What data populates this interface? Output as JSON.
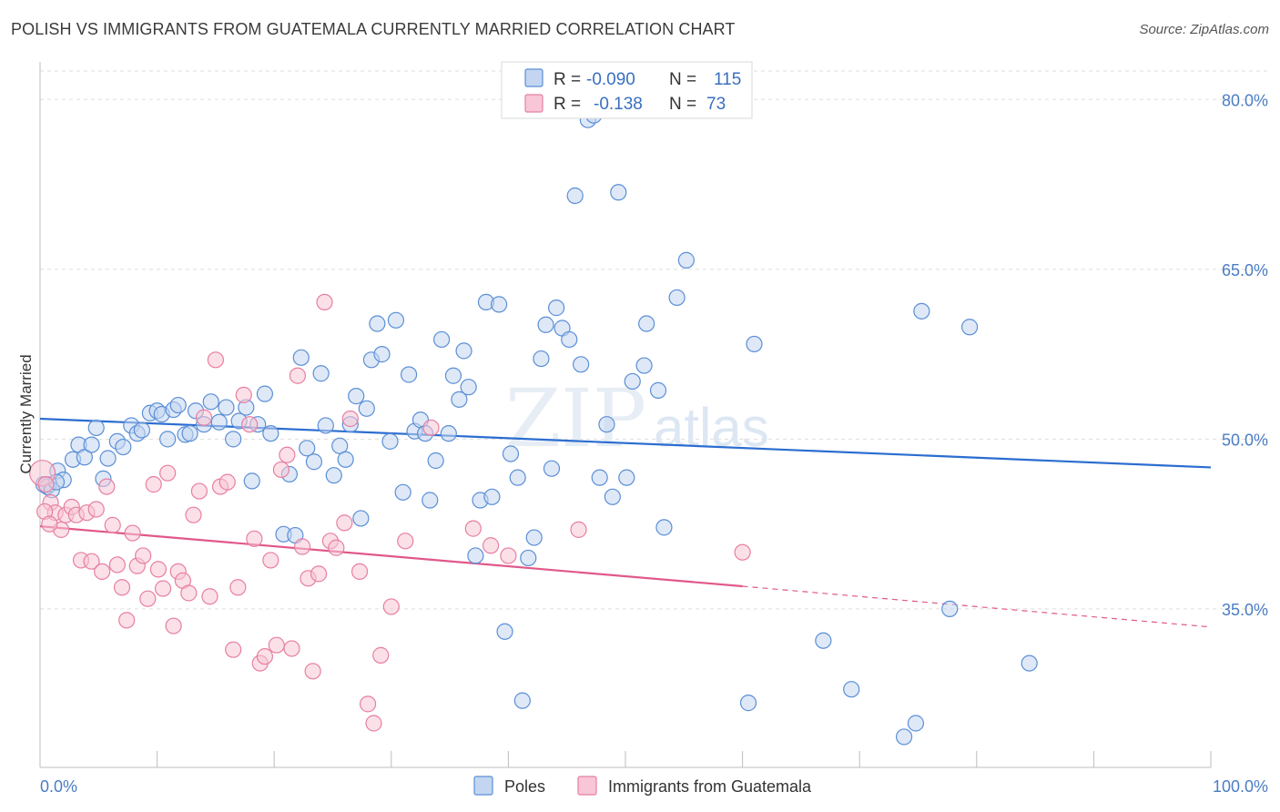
{
  "header": {
    "title": "POLISH VS IMMIGRANTS FROM GUATEMALA CURRENTLY MARRIED CORRELATION CHART",
    "source": "Source: ZipAtlas.com"
  },
  "watermark": {
    "zip": "ZIP",
    "atlas": "atlas"
  },
  "legend": {
    "row1": {
      "r_label": "R =",
      "r_value": "-0.090",
      "n_label": "N =",
      "n_value": "115"
    },
    "row2": {
      "r_label": "R =",
      "r_value": "-0.138",
      "n_label": "N =",
      "n_value": "73"
    }
  },
  "bottom_legend": {
    "poles": "Poles",
    "guatemala": "Immigrants from Guatemala"
  },
  "colors": {
    "poles_fill": "#c3d5f0",
    "poles_stroke": "#5b8fd6",
    "poles_line": "#2b6dd0",
    "guat_fill": "#f8c6d6",
    "guat_stroke": "#e77fa1",
    "guat_line": "#e0588a",
    "tick_text": "#4a7cc4",
    "grid": "#dddddd"
  },
  "chart_data": {
    "type": "scatter",
    "title": "POLISH VS IMMIGRANTS FROM GUATEMALA CURRENTLY MARRIED CORRELATION CHART",
    "xlabel": "",
    "ylabel": "Currently Married",
    "xlim": [
      0,
      100
    ],
    "ylim": [
      21,
      83
    ],
    "x_tick_labels": [
      "0.0%",
      "100.0%"
    ],
    "y_ticks": [
      35,
      50,
      65,
      80
    ],
    "y_tick_labels": [
      "35.0%",
      "50.0%",
      "65.0%",
      "80.0%"
    ],
    "grid": true,
    "legend_position": "top-center",
    "series": [
      {
        "name": "Poles",
        "R": -0.09,
        "N": 115,
        "trend": {
          "x": [
            0,
            100
          ],
          "y": [
            51.8,
            47.5
          ]
        },
        "points": [
          [
            0.8,
            46.0
          ],
          [
            1.5,
            47.2
          ],
          [
            2.0,
            46.4
          ],
          [
            2.8,
            48.2
          ],
          [
            3.3,
            49.5
          ],
          [
            3.8,
            48.4
          ],
          [
            4.4,
            49.5
          ],
          [
            4.8,
            51.0
          ],
          [
            5.4,
            46.5
          ],
          [
            5.8,
            48.3
          ],
          [
            6.6,
            49.8
          ],
          [
            7.1,
            49.3
          ],
          [
            7.8,
            51.2
          ],
          [
            8.3,
            50.5
          ],
          [
            8.7,
            50.8
          ],
          [
            9.4,
            52.3
          ],
          [
            10.0,
            52.5
          ],
          [
            10.4,
            52.2
          ],
          [
            10.9,
            50.0
          ],
          [
            11.4,
            52.6
          ],
          [
            11.8,
            53.0
          ],
          [
            12.4,
            50.4
          ],
          [
            12.8,
            50.5
          ],
          [
            13.3,
            52.5
          ],
          [
            14.0,
            51.3
          ],
          [
            14.6,
            53.3
          ],
          [
            15.3,
            51.5
          ],
          [
            15.9,
            52.8
          ],
          [
            16.5,
            50.0
          ],
          [
            17.0,
            51.6
          ],
          [
            17.6,
            52.8
          ],
          [
            18.1,
            46.3
          ],
          [
            18.6,
            51.3
          ],
          [
            19.2,
            54.0
          ],
          [
            19.7,
            50.5
          ],
          [
            20.8,
            41.6
          ],
          [
            21.3,
            46.9
          ],
          [
            21.8,
            41.5
          ],
          [
            22.3,
            57.2
          ],
          [
            22.8,
            49.2
          ],
          [
            23.4,
            48.0
          ],
          [
            24.0,
            55.8
          ],
          [
            24.4,
            51.2
          ],
          [
            25.1,
            46.8
          ],
          [
            25.6,
            49.4
          ],
          [
            26.1,
            48.2
          ],
          [
            26.5,
            51.3
          ],
          [
            27.0,
            53.8
          ],
          [
            27.4,
            43.0
          ],
          [
            27.9,
            52.7
          ],
          [
            28.3,
            57.0
          ],
          [
            28.8,
            60.2
          ],
          [
            29.2,
            57.5
          ],
          [
            29.9,
            49.8
          ],
          [
            30.4,
            60.5
          ],
          [
            31.0,
            45.3
          ],
          [
            31.5,
            55.7
          ],
          [
            32.0,
            50.7
          ],
          [
            32.5,
            51.7
          ],
          [
            32.9,
            50.5
          ],
          [
            33.3,
            44.6
          ],
          [
            33.8,
            48.1
          ],
          [
            34.3,
            58.8
          ],
          [
            34.9,
            50.5
          ],
          [
            35.3,
            55.6
          ],
          [
            35.8,
            53.5
          ],
          [
            36.2,
            57.8
          ],
          [
            36.6,
            54.6
          ],
          [
            37.2,
            39.7
          ],
          [
            37.6,
            44.6
          ],
          [
            38.1,
            62.1
          ],
          [
            38.6,
            44.9
          ],
          [
            39.2,
            61.9
          ],
          [
            39.7,
            33.0
          ],
          [
            40.2,
            48.7
          ],
          [
            40.8,
            46.6
          ],
          [
            41.2,
            26.9
          ],
          [
            41.7,
            39.5
          ],
          [
            42.2,
            41.3
          ],
          [
            42.8,
            57.1
          ],
          [
            43.2,
            60.1
          ],
          [
            43.7,
            47.4
          ],
          [
            44.1,
            61.6
          ],
          [
            44.6,
            59.8
          ],
          [
            45.2,
            58.8
          ],
          [
            45.7,
            71.5
          ],
          [
            46.2,
            56.6
          ],
          [
            46.8,
            78.2
          ],
          [
            47.3,
            78.6
          ],
          [
            47.8,
            46.6
          ],
          [
            48.4,
            51.3
          ],
          [
            48.9,
            44.9
          ],
          [
            49.4,
            71.8
          ],
          [
            50.1,
            46.6
          ],
          [
            50.6,
            55.1
          ],
          [
            51.6,
            56.5
          ],
          [
            51.8,
            60.2
          ],
          [
            52.8,
            54.3
          ],
          [
            53.3,
            42.2
          ],
          [
            54.4,
            62.5
          ],
          [
            55.2,
            65.8
          ],
          [
            60.5,
            26.7
          ],
          [
            61.0,
            58.4
          ],
          [
            66.9,
            32.2
          ],
          [
            69.3,
            27.9
          ],
          [
            73.8,
            23.7
          ],
          [
            74.8,
            24.9
          ],
          [
            75.3,
            61.3
          ],
          [
            77.7,
            35.0
          ],
          [
            79.4,
            59.9
          ],
          [
            84.5,
            30.2
          ],
          [
            0.3,
            46.0
          ],
          [
            0.6,
            45.8
          ],
          [
            1.0,
            45.5
          ],
          [
            1.4,
            46.2
          ]
        ]
      },
      {
        "name": "Immigrants from Guatemala",
        "R": -0.138,
        "N": 73,
        "trend": {
          "x": [
            0,
            60
          ],
          "y": [
            42.3,
            37.0
          ]
        },
        "trend_dashed": {
          "x": [
            60,
            100
          ],
          "y": [
            37.0,
            33.4
          ]
        },
        "points": [
          [
            0.2,
            47.0
          ],
          [
            0.5,
            46.0
          ],
          [
            0.9,
            44.4
          ],
          [
            1.3,
            43.5
          ],
          [
            1.8,
            42.0
          ],
          [
            2.2,
            43.3
          ],
          [
            2.7,
            44.0
          ],
          [
            3.1,
            43.3
          ],
          [
            3.5,
            39.3
          ],
          [
            4.0,
            43.5
          ],
          [
            4.4,
            39.2
          ],
          [
            4.8,
            43.8
          ],
          [
            5.3,
            38.3
          ],
          [
            5.7,
            45.8
          ],
          [
            6.2,
            42.4
          ],
          [
            6.6,
            38.9
          ],
          [
            7.0,
            36.9
          ],
          [
            7.4,
            34.0
          ],
          [
            7.9,
            41.7
          ],
          [
            8.3,
            38.8
          ],
          [
            8.8,
            39.7
          ],
          [
            9.2,
            35.9
          ],
          [
            9.7,
            46.0
          ],
          [
            10.1,
            38.5
          ],
          [
            10.5,
            36.8
          ],
          [
            10.9,
            47.0
          ],
          [
            11.4,
            33.5
          ],
          [
            11.8,
            38.3
          ],
          [
            12.2,
            37.5
          ],
          [
            12.7,
            36.4
          ],
          [
            13.1,
            43.3
          ],
          [
            13.6,
            45.4
          ],
          [
            14.0,
            51.9
          ],
          [
            14.5,
            36.1
          ],
          [
            15.0,
            57.0
          ],
          [
            15.4,
            45.8
          ],
          [
            16.0,
            46.2
          ],
          [
            16.5,
            31.4
          ],
          [
            16.9,
            36.9
          ],
          [
            17.4,
            53.9
          ],
          [
            17.9,
            51.3
          ],
          [
            18.3,
            41.2
          ],
          [
            18.8,
            30.2
          ],
          [
            19.2,
            30.8
          ],
          [
            19.7,
            39.3
          ],
          [
            20.2,
            31.8
          ],
          [
            20.6,
            47.3
          ],
          [
            21.1,
            48.6
          ],
          [
            21.5,
            31.5
          ],
          [
            22.0,
            55.6
          ],
          [
            22.4,
            40.5
          ],
          [
            22.9,
            37.7
          ],
          [
            23.3,
            29.5
          ],
          [
            23.8,
            38.1
          ],
          [
            24.3,
            62.1
          ],
          [
            24.8,
            41.0
          ],
          [
            25.3,
            40.4
          ],
          [
            26.0,
            42.6
          ],
          [
            26.5,
            51.8
          ],
          [
            27.3,
            38.3
          ],
          [
            28.0,
            26.6
          ],
          [
            28.5,
            24.9
          ],
          [
            29.1,
            30.9
          ],
          [
            30.0,
            35.2
          ],
          [
            31.2,
            41.0
          ],
          [
            33.4,
            51.0
          ],
          [
            37.0,
            42.1
          ],
          [
            38.5,
            40.6
          ],
          [
            40.0,
            39.7
          ],
          [
            46.0,
            42.0
          ],
          [
            60.0,
            40.0
          ],
          [
            0.4,
            43.6
          ],
          [
            0.8,
            42.5
          ]
        ]
      }
    ]
  }
}
